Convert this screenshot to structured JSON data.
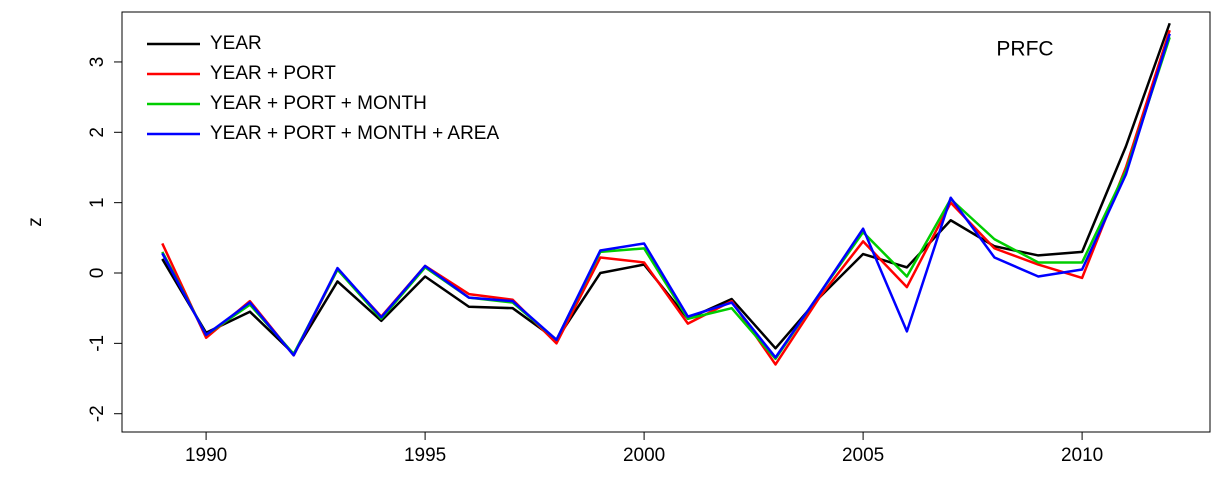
{
  "chart_data": {
    "type": "line",
    "title": "PRFC",
    "y_label": "z",
    "x": [
      1989,
      1990,
      1991,
      1992,
      1993,
      1994,
      1995,
      1996,
      1997,
      1998,
      1999,
      2000,
      2001,
      2002,
      2003,
      2004,
      2005,
      2006,
      2007,
      2008,
      2009,
      2010,
      2011,
      2012
    ],
    "series": [
      {
        "name": "YEAR",
        "color": "#000000",
        "values": [
          0.2,
          -0.85,
          -0.55,
          -1.15,
          -0.12,
          -0.68,
          -0.05,
          -0.48,
          -0.5,
          -0.95,
          0.0,
          0.12,
          -0.65,
          -0.37,
          -1.07,
          -0.35,
          0.27,
          0.08,
          0.75,
          0.38,
          0.25,
          0.3,
          1.8,
          3.55
        ]
      },
      {
        "name": "YEAR + PORT",
        "color": "#ff0000",
        "values": [
          0.42,
          -0.92,
          -0.4,
          -1.17,
          0.05,
          -0.62,
          0.1,
          -0.3,
          -0.38,
          -1.0,
          0.22,
          0.15,
          -0.72,
          -0.4,
          -1.3,
          -0.35,
          0.45,
          -0.2,
          1.0,
          0.35,
          0.12,
          -0.07,
          1.5,
          3.45
        ]
      },
      {
        "name": "YEAR + PORT + MONTH",
        "color": "#00cd00",
        "values": [
          0.3,
          -0.88,
          -0.45,
          -1.15,
          0.05,
          -0.65,
          0.08,
          -0.35,
          -0.42,
          -0.95,
          0.3,
          0.35,
          -0.65,
          -0.5,
          -1.22,
          -0.3,
          0.58,
          -0.05,
          1.05,
          0.48,
          0.15,
          0.15,
          1.45,
          3.35
        ]
      },
      {
        "name": "YEAR + PORT + MONTH + AREA",
        "color": "#0000ff",
        "values": [
          0.28,
          -0.88,
          -0.42,
          -1.17,
          0.07,
          -0.63,
          0.1,
          -0.35,
          -0.4,
          -0.95,
          0.32,
          0.42,
          -0.62,
          -0.42,
          -1.2,
          -0.3,
          0.63,
          -0.83,
          1.07,
          0.22,
          -0.05,
          0.05,
          1.4,
          3.4
        ]
      }
    ],
    "xlim": [
      1988.08,
      2012.92
    ],
    "xticks": [
      1990,
      1995,
      2000,
      2005,
      2010
    ],
    "ylim": [
      -2.26,
      3.71
    ],
    "yticks": [
      -2,
      -1,
      0,
      1,
      2,
      3
    ],
    "legend": "top-left"
  }
}
